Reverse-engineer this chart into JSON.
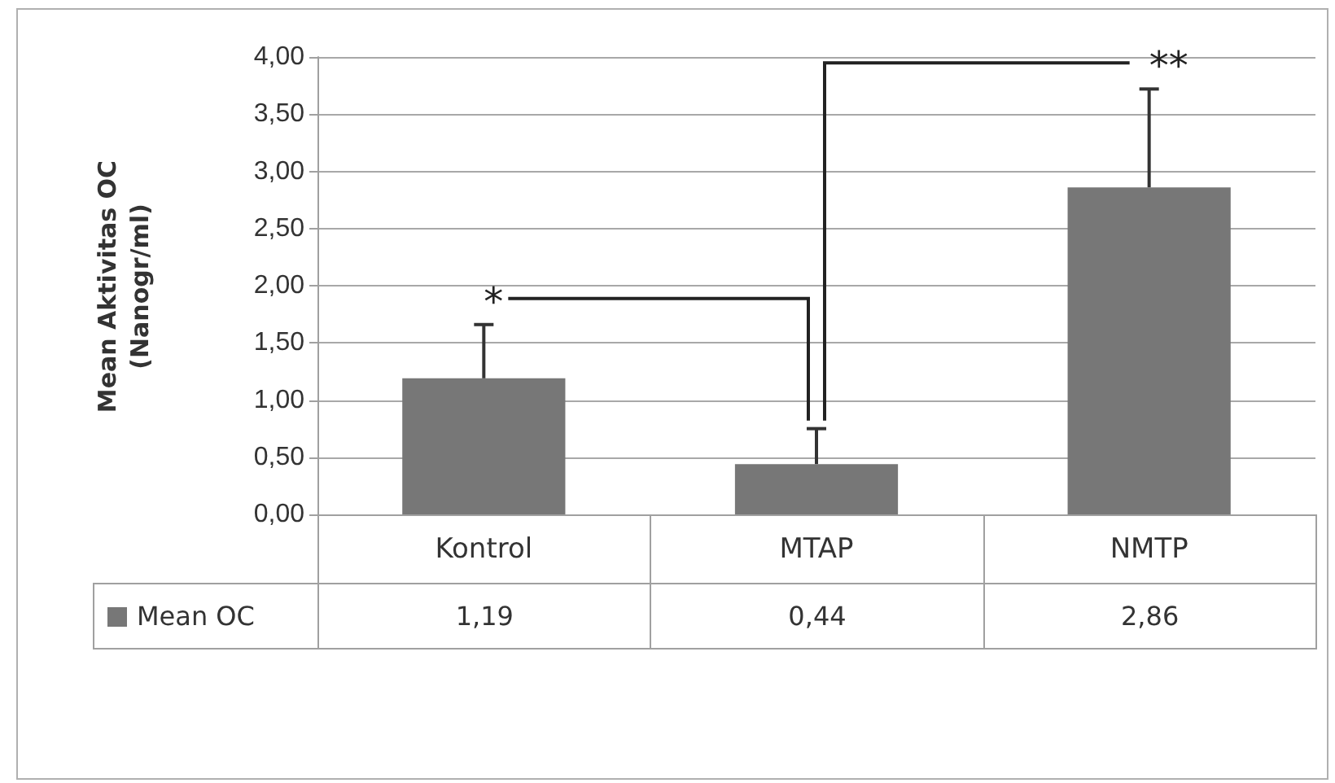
{
  "chart_data": {
    "type": "bar",
    "ylabel": "Mean Aktivitas OC (Nanogr/ml)",
    "categories": [
      "Kontrol",
      "MTAP",
      "NMTP"
    ],
    "series": [
      {
        "name": "Mean OC",
        "color": "#777777",
        "values": [
          1.19,
          0.44,
          2.86
        ],
        "errors": [
          [
            1.19,
            1.66
          ],
          [
            0.44,
            0.75
          ],
          [
            2.86,
            3.72
          ]
        ],
        "value_labels": [
          "1,19",
          "0,44",
          "2,86"
        ]
      }
    ],
    "ylim": [
      0,
      4
    ],
    "yticks": [
      {
        "value": 0,
        "label": "0,00"
      },
      {
        "value": 0.5,
        "label": "0,50"
      },
      {
        "value": 1,
        "label": "1,00"
      },
      {
        "value": 1.5,
        "label": "1,50"
      },
      {
        "value": 2,
        "label": "2,00"
      },
      {
        "value": 2.5,
        "label": "2,50"
      },
      {
        "value": 3,
        "label": "3,00"
      },
      {
        "value": 3.5,
        "label": "3,50"
      },
      {
        "value": 4,
        "label": "4,00"
      }
    ],
    "grid": "y",
    "legend": "bottom",
    "annotations": [
      "*",
      "**"
    ]
  }
}
